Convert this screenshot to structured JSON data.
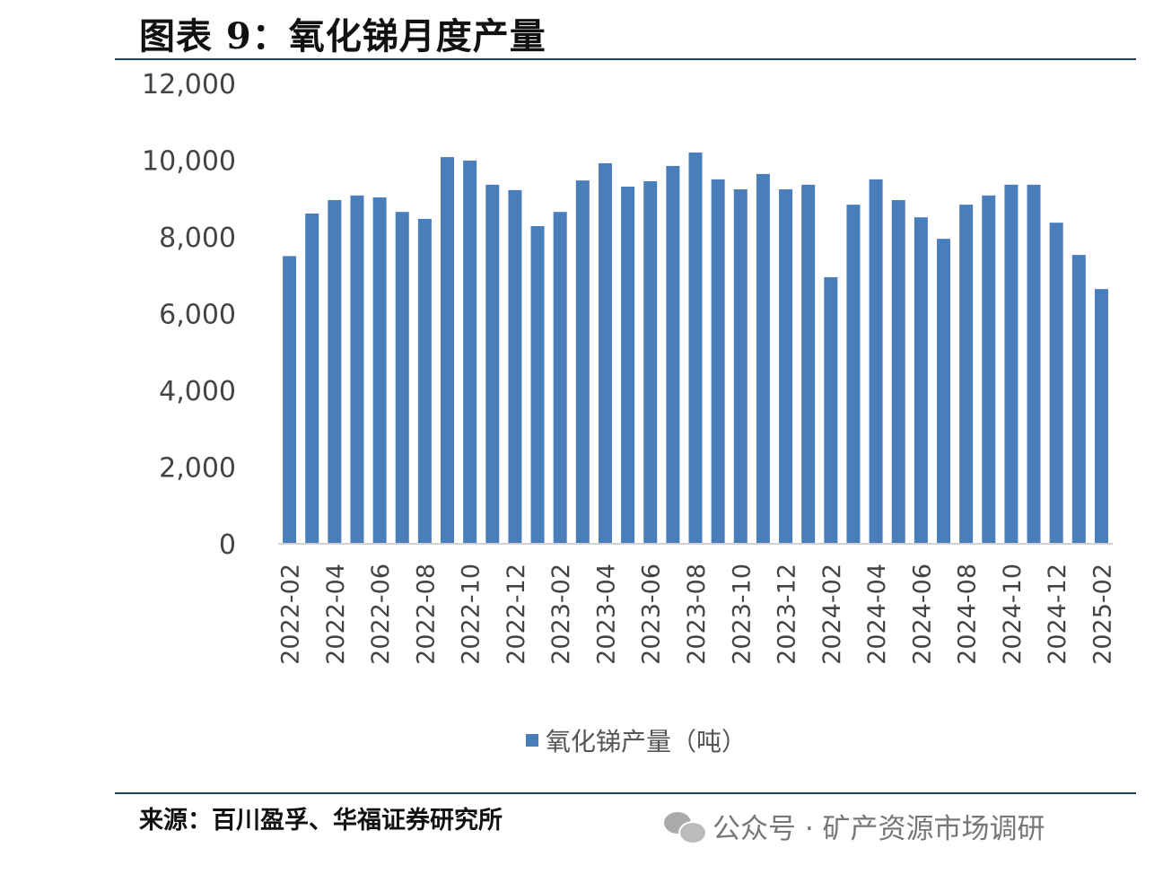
{
  "title": "图表 9：氧化锑月度产量",
  "source": "来源：百川盈孚、华福证券研究所",
  "watermark": "公众号 · 矿产资源市场调研",
  "colors": {
    "bar": "#4a7ebb",
    "rule": "#1f3f66"
  },
  "chart_data": {
    "type": "bar",
    "title": "氧化锑月度产量",
    "xlabel": "",
    "ylabel": "",
    "ylim": [
      0,
      12000
    ],
    "yticks": [
      "0",
      "2,000",
      "4,000",
      "6,000",
      "8,000",
      "10,000",
      "12,000"
    ],
    "ytick_values": [
      0,
      2000,
      4000,
      6000,
      8000,
      10000,
      12000
    ],
    "grid": false,
    "legend": {
      "position": "bottom",
      "entries": [
        "氧化锑产量（吨）"
      ]
    },
    "categories": [
      "2022-02",
      "2022-03",
      "2022-04",
      "2022-05",
      "2022-06",
      "2022-07",
      "2022-08",
      "2022-09",
      "2022-10",
      "2022-11",
      "2022-12",
      "2023-01",
      "2023-02",
      "2023-03",
      "2023-04",
      "2023-05",
      "2023-06",
      "2023-07",
      "2023-08",
      "2023-09",
      "2023-10",
      "2023-11",
      "2023-12",
      "2024-01",
      "2024-02",
      "2024-03",
      "2024-04",
      "2024-05",
      "2024-06",
      "2024-07",
      "2024-08",
      "2024-09",
      "2024-10",
      "2024-11",
      "2024-12",
      "2025-01",
      "2025-02"
    ],
    "series": [
      {
        "name": "氧化锑产量（吨）",
        "values": [
          7500,
          8610,
          8960,
          9080,
          9030,
          8650,
          8470,
          10080,
          9990,
          9360,
          9220,
          8280,
          8650,
          9470,
          9920,
          9310,
          9450,
          9850,
          10200,
          9500,
          9240,
          9640,
          9240,
          9360,
          6950,
          8840,
          9500,
          8960,
          8510,
          7950,
          8840,
          9080,
          9360,
          9360,
          8370,
          7530,
          6640
        ]
      }
    ],
    "shown_xtick_every": 2
  }
}
